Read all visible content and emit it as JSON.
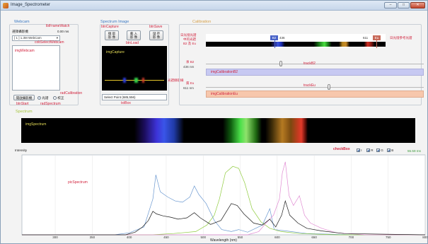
{
  "window": {
    "title": "Image_Spectrometer",
    "minimize": "–",
    "maximize": "□",
    "close": "✕"
  },
  "webcam": {
    "group_title": "Webcam",
    "select_label": "選擇攝影機",
    "frame_watch_name": "lblFrameWatch",
    "frame_watch_value": "0.00 ms",
    "combo_value": "[ 1 ] 1.3M WebCam",
    "combo_name": "cobSelectWebcam",
    "image_name": "imgWebcam",
    "start_button": "開啟攝影機",
    "start_name": "btnStart",
    "radio_spectrum": "光譜",
    "radio_calibration": "校正",
    "rad_spectrum_name": "radSpectrum",
    "rad_calibration_name": "radCalibration"
  },
  "spectrum_image": {
    "group_title": "Spectrum Image",
    "btn_capture_name": "btnCapture",
    "btn_capture_label": "擷 取\n影 像",
    "btn_load_label": "載 入\n影 像",
    "btn_load_name": "btnLoad",
    "btn_save_label": "儲 存\n影 像",
    "btn_save_name": "btnSave",
    "capture_name": "imgCapture",
    "select_point": "Select Point (685,556)",
    "txtbox_name": "txtBox",
    "side_note": "光譜擷取線"
  },
  "calibration": {
    "group_title": "Calibration",
    "ref_label_line1": "日光燈光譜",
    "ref_label_line2": "中的光譜",
    "ref_label_line3": "B2 及 Eu",
    "ref_right": "日光燈參考光譜",
    "marker_b2": "B2",
    "marker_b2_value": "436",
    "marker_eu_value": "611",
    "marker_eu": "Eu",
    "b2_label": "汞 B2",
    "b2_nm": "436 nm",
    "track_b2": "trackB2",
    "img_b2": "imgCalibrationB2",
    "eu_label": "銪 Eu",
    "eu_nm": "611 nm",
    "track_eu": "trackEu",
    "img_eu": "imgCalibrationEu"
  },
  "spectrum": {
    "group_title": "Spectrum",
    "image_name": "imgSpectrum",
    "intensity_label": "Intensity",
    "checkbox_name": "checkBox",
    "chk_i": "I",
    "chk_r": "R",
    "chk_g": "G",
    "chk_b": "B",
    "watch_value": "55.59 ms",
    "watch_name": "lblSpectrumWatch",
    "pic_name": "picSpectrum"
  },
  "chart_data": {
    "type": "line",
    "xlabel": "Wavelength (nm)",
    "ylabel": "",
    "xlim": [
      255,
      800
    ],
    "ticks": [
      300,
      350,
      400,
      450,
      500,
      550,
      600,
      650,
      700,
      750,
      800
    ],
    "series": [
      {
        "color": "#6a98d0",
        "points": [
          [
            255,
            0.0
          ],
          [
            380,
            0.0
          ],
          [
            400,
            0.03
          ],
          [
            420,
            0.12
          ],
          [
            432,
            0.55
          ],
          [
            436,
            0.92
          ],
          [
            442,
            0.66
          ],
          [
            452,
            0.58
          ],
          [
            462,
            0.52
          ],
          [
            472,
            0.5
          ],
          [
            482,
            0.58
          ],
          [
            488,
            0.75
          ],
          [
            494,
            0.62
          ],
          [
            504,
            0.48
          ],
          [
            515,
            0.22
          ],
          [
            525,
            0.08
          ],
          [
            538,
            0.05
          ],
          [
            548,
            0.08
          ],
          [
            560,
            0.04
          ],
          [
            580,
            0.15
          ],
          [
            590,
            0.4
          ],
          [
            596,
            0.08
          ],
          [
            612,
            0.06
          ],
          [
            640,
            0.02
          ],
          [
            700,
            0.0
          ],
          [
            800,
            0.0
          ]
        ]
      },
      {
        "color": "#8fcc3e",
        "points": [
          [
            255,
            0.0
          ],
          [
            430,
            0.0
          ],
          [
            460,
            0.02
          ],
          [
            490,
            0.05
          ],
          [
            505,
            0.15
          ],
          [
            515,
            0.3
          ],
          [
            522,
            0.55
          ],
          [
            530,
            0.95
          ],
          [
            540,
            1.05
          ],
          [
            548,
            1.02
          ],
          [
            556,
            0.8
          ],
          [
            566,
            0.4
          ],
          [
            578,
            0.2
          ],
          [
            590,
            0.1
          ],
          [
            605,
            0.05
          ],
          [
            630,
            0.02
          ],
          [
            680,
            0.0
          ],
          [
            800,
            0.0
          ]
        ]
      },
      {
        "color": "#e08ad2",
        "points": [
          [
            255,
            0.0
          ],
          [
            560,
            0.0
          ],
          [
            575,
            0.05
          ],
          [
            585,
            0.18
          ],
          [
            595,
            0.3
          ],
          [
            603,
            0.55
          ],
          [
            607,
            0.95
          ],
          [
            611,
            1.12
          ],
          [
            616,
            0.6
          ],
          [
            622,
            0.45
          ],
          [
            630,
            0.6
          ],
          [
            637,
            0.3
          ],
          [
            645,
            0.18
          ],
          [
            660,
            0.1
          ],
          [
            680,
            0.03
          ],
          [
            720,
            0.0
          ],
          [
            800,
            0.0
          ]
        ]
      },
      {
        "color": "#1a1a1a",
        "points": [
          [
            255,
            0.0
          ],
          [
            395,
            0.0
          ],
          [
            408,
            0.04
          ],
          [
            418,
            0.12
          ],
          [
            426,
            0.22
          ],
          [
            432,
            0.36
          ],
          [
            437,
            0.32
          ],
          [
            446,
            0.29
          ],
          [
            456,
            0.27
          ],
          [
            466,
            0.24
          ],
          [
            478,
            0.26
          ],
          [
            488,
            0.34
          ],
          [
            496,
            0.26
          ],
          [
            510,
            0.16
          ],
          [
            524,
            0.22
          ],
          [
            538,
            0.48
          ],
          [
            546,
            0.45
          ],
          [
            555,
            0.32
          ],
          [
            568,
            0.18
          ],
          [
            580,
            0.15
          ],
          [
            590,
            0.24
          ],
          [
            598,
            0.12
          ],
          [
            606,
            0.3
          ],
          [
            611,
            0.52
          ],
          [
            617,
            0.3
          ],
          [
            628,
            0.18
          ],
          [
            640,
            0.1
          ],
          [
            660,
            0.06
          ],
          [
            690,
            0.02
          ],
          [
            800,
            0.0
          ]
        ]
      }
    ]
  }
}
